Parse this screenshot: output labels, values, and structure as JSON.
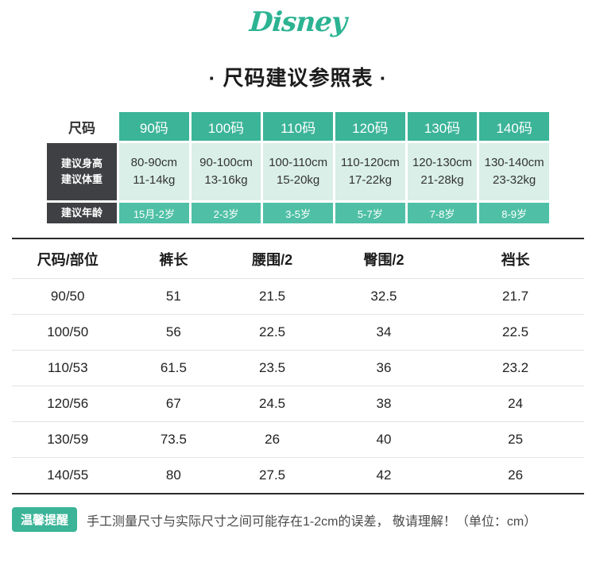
{
  "brand": {
    "logo_text": "Disney"
  },
  "title": "· 尺码建议参照表 ·",
  "colors": {
    "logo": "#2bb392",
    "accent": "#3bb498",
    "accent-light": "#d9efe8",
    "dark": "#3f4043",
    "age": "#4fc0a6",
    "line": "#e3e3e3",
    "border": "#2b2b2b"
  },
  "size_table": {
    "corner_label": "尺码",
    "sizes": [
      "90码",
      "100码",
      "110码",
      "120码",
      "130码",
      "140码"
    ],
    "row_labels": {
      "height": "建议身高",
      "weight": "建议体重",
      "age": "建议年龄"
    },
    "height_values": [
      "80-90cm",
      "90-100cm",
      "100-110cm",
      "110-120cm",
      "120-130cm",
      "130-140cm"
    ],
    "weight_values": [
      "11-14kg",
      "13-16kg",
      "15-20kg",
      "17-22kg",
      "21-28kg",
      "23-32kg"
    ],
    "ages": [
      "15月-2岁",
      "2-3岁",
      "3-5岁",
      "5-7岁",
      "7-8岁",
      "8-9岁"
    ]
  },
  "measure_table": {
    "headers": [
      "尺码/部位",
      "裤长",
      "腰围/2",
      "臀围/2",
      "裆长"
    ],
    "rows": [
      [
        "90/50",
        "51",
        "21.5",
        "32.5",
        "21.7"
      ],
      [
        "100/50",
        "56",
        "22.5",
        "34",
        "22.5"
      ],
      [
        "110/53",
        "61.5",
        "23.5",
        "36",
        "23.2"
      ],
      [
        "120/56",
        "67",
        "24.5",
        "38",
        "24"
      ],
      [
        "130/59",
        "73.5",
        "26",
        "40",
        "25"
      ],
      [
        "140/55",
        "80",
        "27.5",
        "42",
        "26"
      ]
    ]
  },
  "footer": {
    "badge": "温馨提醒",
    "text": "手工测量尺寸与实际尺寸之间可能存在1-2cm的误差， 敬请理解！（单位：cm）"
  }
}
